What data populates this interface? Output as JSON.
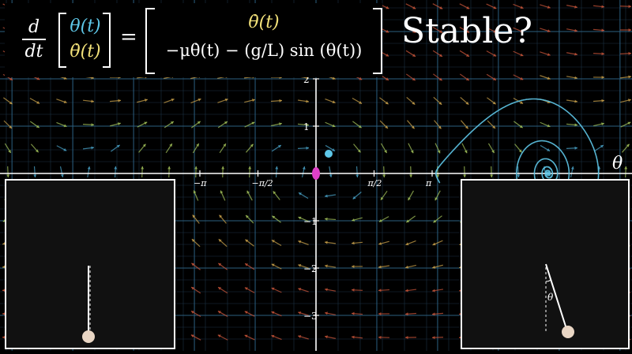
{
  "equation": {
    "d_numerator": "d",
    "d_denominator": "dt",
    "vector_top": "θ(t)",
    "vector_bottom": "θ̇(t)",
    "equals": "=",
    "rhs_top": "θ̇(t)",
    "rhs_bottom_parts": [
      "−μθ̇(t) − (g/L) sin (θ(t))"
    ]
  },
  "heading": "Stable?",
  "axes": {
    "x_symbol": "θ",
    "x_ticks": [
      "−π",
      "−π/2",
      "π/2",
      "π"
    ],
    "y_ticks": [
      "2",
      "1",
      "−1",
      "−2",
      "−3"
    ]
  },
  "pendulum_right_angle_label": "θ",
  "colors": {
    "blue": "#5ec7e8",
    "yellow": "#f3e27a",
    "pink": "#e040c8",
    "grid": "#1f3f55",
    "axis": "#ffffff"
  }
}
